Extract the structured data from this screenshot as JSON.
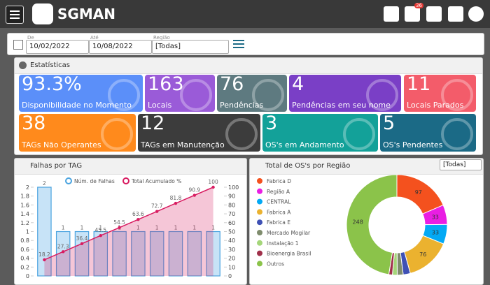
{
  "header": {
    "logo": "SGMAN",
    "notification_count": "36"
  },
  "filters": {
    "from_label": "De",
    "from": "10/02/2022",
    "to_label": "Até",
    "to": "10/08/2022",
    "region_label": "Região",
    "region": "[Todas]"
  },
  "stats": {
    "title": "Estatísticas",
    "tiles": [
      {
        "value": "93.3%",
        "label": "Disponibilidade no Momento",
        "color": "#5b8ff9"
      },
      {
        "value": "163",
        "label": "Locais",
        "color": "#9a5bd8"
      },
      {
        "value": "76",
        "label": "Pendências",
        "color": "#5e7a80"
      },
      {
        "value": "4",
        "label": "Pendências em seu nome",
        "color": "#7a3fc6"
      },
      {
        "value": "11",
        "label": "Locais Parados",
        "color": "#f35c6a"
      },
      {
        "value": "38",
        "label": "TAGs Não Operantes",
        "color": "#ff8a1c"
      },
      {
        "value": "12",
        "label": "TAGs em Manutenção",
        "color": "#3c3c3c"
      },
      {
        "value": "3",
        "label": "OS's em Andamento",
        "color": "#13a199"
      },
      {
        "value": "5",
        "label": "OS's Pendentes",
        "color": "#1b6a86"
      }
    ]
  },
  "chart_data": [
    {
      "type": "bar",
      "title": "Falhas por TAG",
      "categories": [
        null,
        null,
        null,
        null,
        null,
        null,
        null,
        null,
        null,
        null
      ],
      "series": [
        {
          "name": "Núm. de Falhas",
          "color": "#4aa3df",
          "values": [
            2,
            1,
            1,
            1,
            1,
            1,
            1,
            1,
            1,
            1
          ]
        },
        {
          "name": "Total Acumulado %",
          "color": "#d81b60",
          "axis": "y2",
          "values": [
            18.2,
            27.3,
            36.4,
            45.5,
            54.5,
            63.6,
            72.7,
            81.8,
            90.9,
            100
          ]
        }
      ],
      "ylim": [
        0,
        2
      ],
      "yticks": [
        0,
        0.2,
        0.4,
        0.6,
        0.8,
        1,
        1.2,
        1.4,
        1.6,
        1.8,
        2
      ],
      "y2lim": [
        0,
        100
      ],
      "y2ticks": [
        0,
        10,
        20,
        30,
        40,
        50,
        60,
        70,
        80,
        90,
        100
      ],
      "grid": false
    },
    {
      "type": "pie",
      "title": "Total de OS's por Região",
      "filter": "[Todas]",
      "categories": [
        "Fabrica D",
        "Região A",
        "CENTRAL",
        "Fabrica A",
        "Fabrica E",
        "Mercado Mogilar",
        "Instalação 1",
        "Bioenergia Brasil",
        "Outros"
      ],
      "values": [
        97,
        33,
        33,
        76,
        12,
        10,
        8,
        6,
        248
      ],
      "value_labels": [
        "97",
        "33",
        "33",
        "76",
        null,
        null,
        null,
        null,
        "248"
      ],
      "colors": [
        "#f4511e",
        "#e91ee3",
        "#03a9f4",
        "#ebb22f",
        "#3f51b5",
        "#7f8c6d",
        "#a5d67a",
        "#a0304a",
        "#8bc34a"
      ]
    }
  ]
}
